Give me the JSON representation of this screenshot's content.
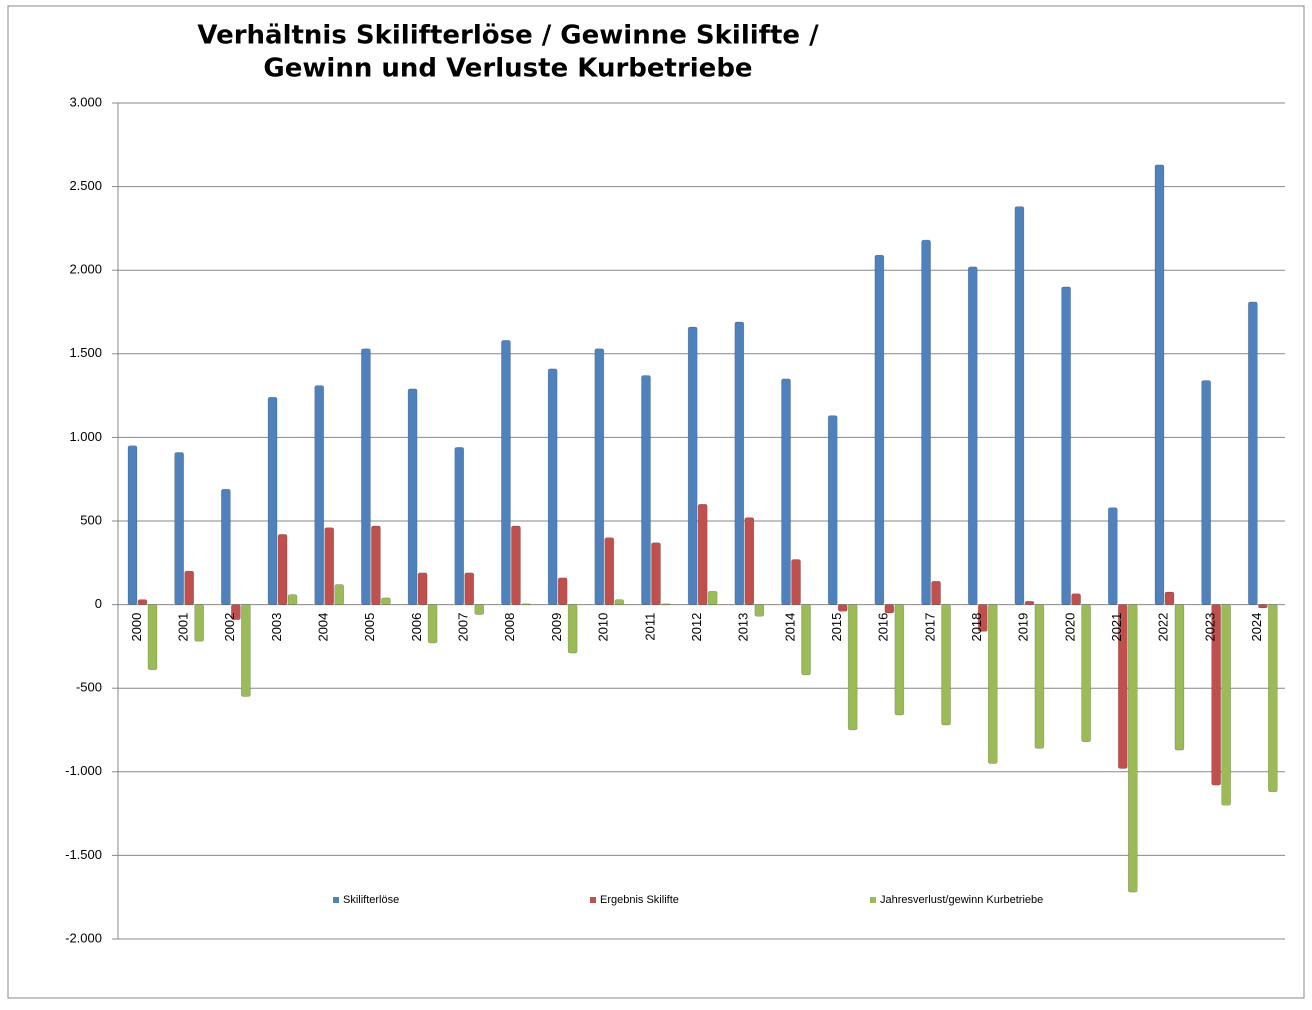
{
  "chart_data": {
    "type": "bar",
    "title": [
      "Verhältnis Skilifterlöse / Gewinne Skilifte /",
      "Gewinn und Verluste Kurbetriebe"
    ],
    "categories": [
      "2000",
      "2001",
      "2002",
      "2003",
      "2004",
      "2005",
      "2006",
      "2007",
      "2008",
      "2009",
      "2010",
      "2011",
      "2012",
      "2013",
      "2014",
      "2015",
      "2016",
      "2017",
      "2018",
      "2019",
      "2020",
      "2021",
      "2022",
      "2023",
      "2024"
    ],
    "series": [
      {
        "name": "Skilifterlöse",
        "color": "#4f81bd",
        "values": [
          950,
          910,
          690,
          1240,
          1310,
          1530,
          1290,
          940,
          1580,
          1410,
          1530,
          1370,
          1660,
          1690,
          1350,
          1130,
          2090,
          2180,
          2020,
          2380,
          1900,
          580,
          2630,
          1340,
          1810
        ]
      },
      {
        "name": "Ergebnis Skilifte",
        "color": "#c0504d",
        "values": [
          30,
          200,
          -90,
          420,
          460,
          470,
          190,
          190,
          470,
          160,
          400,
          370,
          600,
          520,
          270,
          -40,
          -50,
          140,
          -160,
          20,
          65,
          -980,
          75,
          -1080,
          -20
        ]
      },
      {
        "name": "Jahresverlust/gewinn Kurbetriebe",
        "color": "#9bbb59",
        "values": [
          -390,
          -220,
          -550,
          60,
          120,
          40,
          -230,
          -60,
          5,
          -290,
          30,
          5,
          80,
          -70,
          -420,
          -750,
          -660,
          -720,
          -950,
          -860,
          -820,
          -1720,
          -870,
          -1200,
          -1120
        ]
      }
    ],
    "ylim": [
      -2000,
      3000
    ],
    "yticks": [
      {
        "value": -2000,
        "label": "-2.000"
      },
      {
        "value": -1500,
        "label": "-1.500"
      },
      {
        "value": -1000,
        "label": "-1.000"
      },
      -500,
      0,
      500,
      {
        "value": 1000,
        "label": "1.000"
      },
      {
        "value": 1500,
        "label": "1.500"
      },
      {
        "value": 2000,
        "label": "2.000"
      },
      {
        "value": 2500,
        "label": "2.500"
      },
      {
        "value": 3000,
        "label": "3.000"
      }
    ],
    "grid": true,
    "legend": "bottom"
  }
}
